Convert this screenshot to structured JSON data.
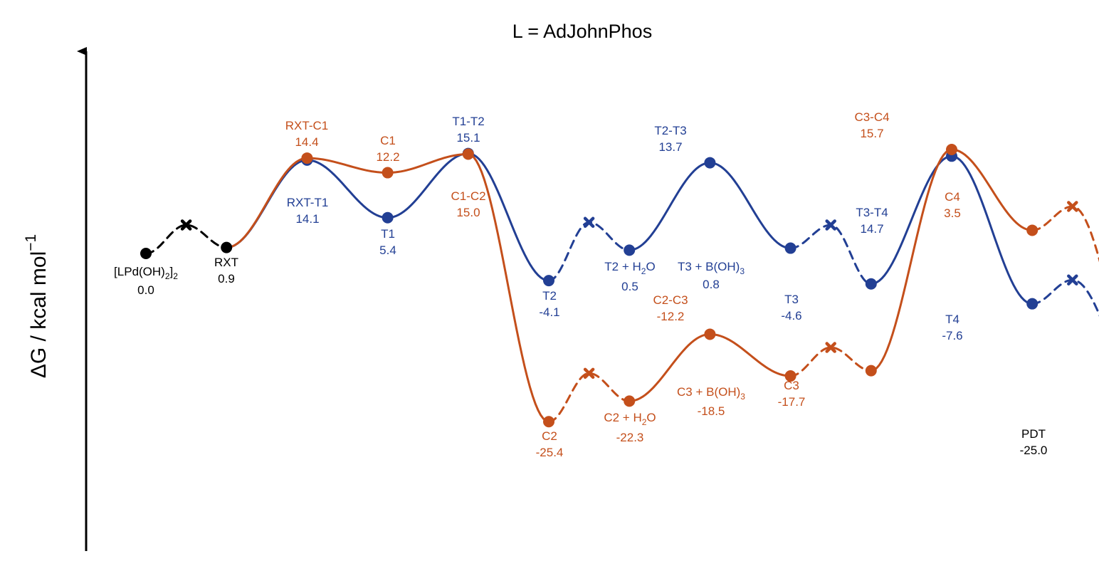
{
  "chart_data": {
    "type": "line",
    "subtype": "reaction-energy-profile",
    "title": "L = AdJohnPhos",
    "xlabel": "",
    "ylabel": "ΔG / kcal mol",
    "ylabel_sup": "−1",
    "ylim": [
      -40,
      29
    ],
    "grid": false,
    "legend": "none",
    "colors": {
      "common": "#000000",
      "blue": "#223f94",
      "orange": "#c44f1b"
    },
    "x_positions": {
      "LPd": 1,
      "RXT_gap": 2,
      "RXT": 3,
      "TS1": 5,
      "INT1": 7,
      "TS2": 9,
      "INT2": 11,
      "gap1": 12,
      "INT3": 13,
      "TS3": 15,
      "INT4": 17,
      "gap2": 18,
      "INT5": 19,
      "TS4": 21,
      "INT6": 23,
      "gap3": 24,
      "PDT": 26
    },
    "common_points": [
      {
        "x": 1,
        "y": 0.0,
        "name": "[LPd(OH)2]2",
        "value": "0.0"
      },
      {
        "x": 3,
        "y": 0.9,
        "name": "RXT",
        "value": "0.9"
      },
      {
        "x": 26,
        "y": -25.0,
        "name": "PDT",
        "value": "-25.0"
      }
    ],
    "series": [
      {
        "color": "blue",
        "points": [
          {
            "x": 5,
            "y": 14.1,
            "name": "RXT-T1",
            "value": "14.1"
          },
          {
            "x": 7,
            "y": 5.4,
            "name": "T1",
            "value": "5.4"
          },
          {
            "x": 9,
            "y": 15.1,
            "name": "T1-T2",
            "value": "15.1"
          },
          {
            "x": 11,
            "y": -4.1,
            "name": "T2",
            "value": "-4.1"
          },
          {
            "x": 13,
            "y": 0.5,
            "name": "T2 + H2O",
            "value": "0.5"
          },
          {
            "x": 15,
            "y": 13.7,
            "name": "T2-T3",
            "value": "13.7"
          },
          {
            "x": 17,
            "y": 0.8,
            "name": "T3 + B(OH)3",
            "value": "0.8"
          },
          {
            "x": 19,
            "y": -4.6,
            "name": "T3",
            "value": "-4.6"
          },
          {
            "x": 21,
            "y": 14.7,
            "name": "T3-T4",
            "value": "14.7"
          },
          {
            "x": 23,
            "y": -7.6,
            "name": "T4",
            "value": "-7.6"
          }
        ]
      },
      {
        "color": "orange",
        "points": [
          {
            "x": 5,
            "y": 14.4,
            "name": "RXT-C1",
            "value": "14.4"
          },
          {
            "x": 7,
            "y": 12.2,
            "name": "C1",
            "value": "12.2"
          },
          {
            "x": 9,
            "y": 15.0,
            "name": "C1-C2",
            "value": "15.0"
          },
          {
            "x": 11,
            "y": -25.4,
            "name": "C2",
            "value": "-25.4"
          },
          {
            "x": 13,
            "y": -22.3,
            "name": "C2 + H2O",
            "value": "-22.3"
          },
          {
            "x": 15,
            "y": -12.2,
            "name": "C2-C3",
            "value": "-12.2"
          },
          {
            "x": 17,
            "y": -18.5,
            "name": "C3 + B(OH)3",
            "value": "-18.5"
          },
          {
            "x": 19,
            "y": -17.7,
            "name": "C3",
            "value": "-17.7"
          },
          {
            "x": 21,
            "y": 15.7,
            "name": "C3-C4",
            "value": "15.7"
          },
          {
            "x": 23,
            "y": 3.5,
            "name": "C4",
            "value": "3.5"
          }
        ]
      }
    ],
    "labels": {
      "lpd": {
        "name_main": "[LPd(OH)",
        "name_sub1": "2",
        "name_mid": "]",
        "name_sub2": "2",
        "value": "0.0"
      },
      "rxt": {
        "name": "RXT",
        "value": "0.9"
      },
      "pdt": {
        "name": "PDT",
        "value": "-25.0"
      },
      "rxt_c1": {
        "name": "RXT-C1",
        "value": "14.4"
      },
      "c1": {
        "name": "C1",
        "value": "12.2"
      },
      "t1_t2": {
        "name": "T1-T2",
        "value": "15.1"
      },
      "rxt_t1": {
        "name": "RXT-T1",
        "value": "14.1"
      },
      "t1": {
        "name": "T1",
        "value": "5.4"
      },
      "c1_c2": {
        "name": "C1-C2",
        "value": "15.0"
      },
      "t2_t3": {
        "name": "T2-T3",
        "value": "13.7"
      },
      "t2": {
        "name": "T2",
        "value": "-4.1"
      },
      "t2_h2o": {
        "name_pre": "T2 + H",
        "name_sub": "2",
        "name_post": "O",
        "value": "0.5"
      },
      "t3_boh": {
        "name_pre": "T3 + B(OH)",
        "name_sub": "3",
        "value": "0.8"
      },
      "t3": {
        "name": "T3",
        "value": "-4.6"
      },
      "c3_c4": {
        "name": "C3-C4",
        "value": "15.7"
      },
      "t3_t4": {
        "name": "T3-T4",
        "value": "14.7"
      },
      "c4": {
        "name": "C4",
        "value": "3.5"
      },
      "t4": {
        "name": "T4",
        "value": "-7.6"
      },
      "c2_c3": {
        "name": "C2-C3",
        "value": "-12.2"
      },
      "c2": {
        "name": "C2",
        "value": "-25.4"
      },
      "c2_h2o": {
        "name_pre": "C2 + H",
        "name_sub": "2",
        "name_post": "O",
        "value": "-22.3"
      },
      "c3_boh": {
        "name_pre": "C3 + B(OH)",
        "name_sub": "3",
        "value": "-18.5"
      },
      "c3": {
        "name": "C3",
        "value": "-17.7"
      }
    }
  }
}
